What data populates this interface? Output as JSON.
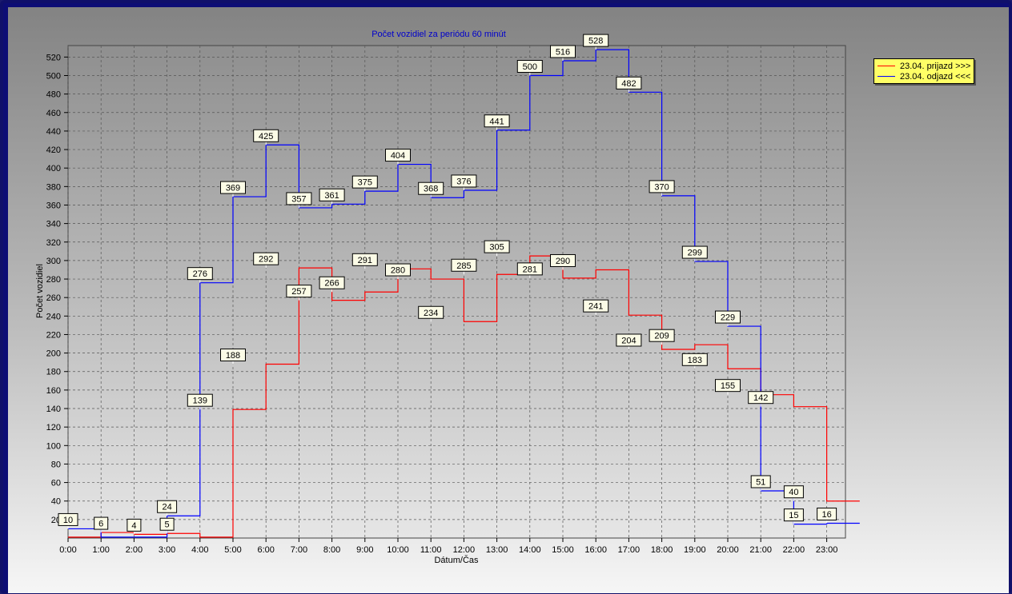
{
  "chart_data": {
    "type": "line",
    "step": true,
    "title": "Počet vozidiel za periódu 60 minút",
    "xlabel": "Dátum/Čas",
    "ylabel": "Počet vozidiel",
    "categories": [
      "0:00",
      "1:00",
      "2:00",
      "3:00",
      "4:00",
      "5:00",
      "6:00",
      "7:00",
      "8:00",
      "9:00",
      "10:00",
      "11:00",
      "12:00",
      "13:00",
      "14:00",
      "15:00",
      "16:00",
      "17:00",
      "18:00",
      "19:00",
      "20:00",
      "21:00",
      "22:00",
      "23:00"
    ],
    "y_ticks": [
      20,
      40,
      60,
      80,
      100,
      120,
      140,
      160,
      180,
      200,
      220,
      240,
      260,
      280,
      300,
      320,
      340,
      360,
      380,
      400,
      420,
      440,
      460,
      480,
      500,
      520
    ],
    "ylim": [
      0,
      535
    ],
    "grid": true,
    "legend_position": "top-right",
    "series": [
      {
        "name": "23.04.  prijazd >>>",
        "color": "#ff0000",
        "values": [
          1,
          6,
          4,
          5,
          1,
          139,
          188,
          292,
          257,
          266,
          291,
          280,
          234,
          285,
          305,
          281,
          290,
          241,
          204,
          209,
          183,
          155,
          142,
          40
        ]
      },
      {
        "name": "23.04.  odjazd <<<",
        "color": "#0000ff",
        "values": [
          10,
          1,
          1,
          24,
          276,
          369,
          425,
          357,
          361,
          375,
          404,
          368,
          376,
          441,
          500,
          516,
          528,
          482,
          370,
          299,
          229,
          51,
          15,
          16
        ]
      }
    ],
    "data_labels": [
      {
        "x": 0,
        "v": 10
      },
      {
        "x": 1,
        "v": 6
      },
      {
        "x": 2,
        "v": 4
      },
      {
        "x": 3,
        "v": 24
      },
      {
        "x": 3,
        "v": 5
      },
      {
        "x": 4,
        "v": 276
      },
      {
        "x": 4,
        "v": 139
      },
      {
        "x": 5,
        "v": 369
      },
      {
        "x": 5,
        "v": 188
      },
      {
        "x": 6,
        "v": 425
      },
      {
        "x": 6,
        "v": 292
      },
      {
        "x": 7,
        "v": 357
      },
      {
        "x": 7,
        "v": 257
      },
      {
        "x": 8,
        "v": 361
      },
      {
        "x": 8,
        "v": 266
      },
      {
        "x": 9,
        "v": 375
      },
      {
        "x": 9,
        "v": 291
      },
      {
        "x": 10,
        "v": 404
      },
      {
        "x": 10,
        "v": 280
      },
      {
        "x": 11,
        "v": 368
      },
      {
        "x": 11,
        "v": 234
      },
      {
        "x": 12,
        "v": 376
      },
      {
        "x": 12,
        "v": 285
      },
      {
        "x": 13,
        "v": 441
      },
      {
        "x": 13,
        "v": 305
      },
      {
        "x": 14,
        "v": 500
      },
      {
        "x": 14,
        "v": 281
      },
      {
        "x": 15,
        "v": 516
      },
      {
        "x": 15,
        "v": 290
      },
      {
        "x": 16,
        "v": 528
      },
      {
        "x": 16,
        "v": 241
      },
      {
        "x": 17,
        "v": 482
      },
      {
        "x": 17,
        "v": 204
      },
      {
        "x": 18,
        "v": 370
      },
      {
        "x": 18,
        "v": 209
      },
      {
        "x": 19,
        "v": 299
      },
      {
        "x": 19,
        "v": 183
      },
      {
        "x": 20,
        "v": 229
      },
      {
        "x": 20,
        "v": 155
      },
      {
        "x": 21,
        "v": 142
      },
      {
        "x": 21,
        "v": 51
      },
      {
        "x": 22,
        "v": 40
      },
      {
        "x": 22,
        "v": 15
      },
      {
        "x": 23,
        "v": 16
      }
    ]
  },
  "colors": {
    "title": "#0000cc",
    "plot_bg_top": "#909090",
    "plot_bg_bottom": "#e4e4e4",
    "label_bg": "#fbfbe6",
    "legend_bg": "#ffff66"
  }
}
